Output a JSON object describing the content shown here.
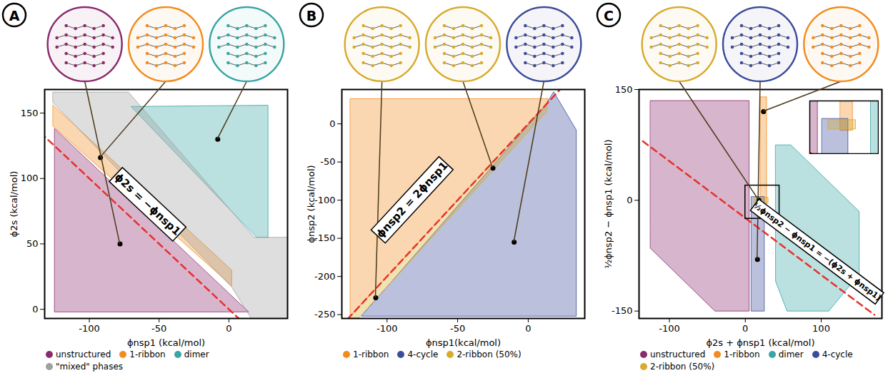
{
  "chart_data": [
    {
      "type": "area",
      "title": "A",
      "x_label": "ϕnsp1 (kcal/mol)",
      "y_label": "ϕ2s (kcal/mol)",
      "xlim": [
        -132,
        42
      ],
      "ylim": [
        -7,
        168
      ],
      "xticks": [
        -100,
        -50,
        0
      ],
      "yticks": [
        0,
        50,
        100,
        150
      ],
      "legend": "bottom",
      "series": [
        {
          "name": "unstructured",
          "color": "#8b2a6e",
          "x": [
            -125,
            -125,
            14
          ],
          "y": [
            138,
            -2,
            -2
          ]
        },
        {
          "name": "1-ribbon",
          "color": "#f28c1e",
          "x": [
            -126,
            2,
            2,
            -126
          ],
          "y": [
            156,
            30,
            18,
            140
          ]
        },
        {
          "name": "dimer",
          "color": "#3aa5a5",
          "x": [
            -70,
            28,
            28,
            20
          ],
          "y": [
            155,
            156,
            55,
            55
          ]
        },
        {
          "name": "\"mixed\" phases",
          "color": "#a0a0a0",
          "x": [
            -126,
            -72,
            18,
            42,
            42,
            16,
            2,
            -126
          ],
          "y": [
            166,
            166,
            55,
            55,
            -7,
            -7,
            17,
            158
          ]
        }
      ],
      "lines": [
        {
          "color": "#e8302a",
          "line_style": "dashed",
          "x": [
            -135,
            8
          ],
          "y": [
            135,
            -8
          ]
        }
      ],
      "annotations": [
        {
          "text": "ϕ2s = −ϕnsp1",
          "x": -58,
          "y": 80
        }
      ],
      "callouts": [
        {
          "series": "unstructured",
          "x": -78,
          "y": 50
        },
        {
          "series": "1-ribbon",
          "x": -92,
          "y": 116
        },
        {
          "series": "dimer",
          "x": -8,
          "y": 130
        }
      ]
    },
    {
      "type": "area",
      "title": "B",
      "x_label": "ϕnsp1(kcal/mol)",
      "y_label": "ϕnsp2 (kcal/mol)",
      "xlim": [
        -132,
        40
      ],
      "ylim": [
        -255,
        45
      ],
      "xticks": [
        -100,
        -50,
        0
      ],
      "yticks": [
        -250,
        -200,
        -150,
        -100,
        -50,
        0
      ],
      "legend": "bottom",
      "series": [
        {
          "name": "1-ribbon",
          "color": "#f28c1e",
          "x": [
            -126,
            14,
            14,
            -126
          ],
          "y": [
            33,
            33,
            28,
            -252
          ]
        },
        {
          "name": "4-cycle",
          "color": "#3d4c9a",
          "x": [
            -118,
            34,
            34,
            18,
            12
          ],
          "y": [
            -252,
            -252,
            -8,
            42,
            24
          ]
        },
        {
          "name": "2-ribbon (50%)",
          "color": "#d8ab2c",
          "x": [
            -127,
            13,
            13,
            -120
          ],
          "y": [
            -254,
            26,
            16,
            -254
          ]
        }
      ],
      "lines": [
        {
          "color": "#e8302a",
          "line_style": "dashed",
          "x": [
            -128,
            22
          ],
          "y": [
            -256,
            44
          ]
        }
      ],
      "annotations": [
        {
          "text": "ϕnsp2 = 2ϕnsp1",
          "x": -82,
          "y": -100
        }
      ],
      "callouts": [
        {
          "series": "2-ribbon (50%)",
          "x": -108,
          "y": -228
        },
        {
          "series": "2-ribbon (50%)",
          "x": -25,
          "y": -58
        },
        {
          "series": "4-cycle",
          "x": -10,
          "y": -155
        }
      ]
    },
    {
      "type": "area",
      "title": "C",
      "x_label": "ϕ2s + ϕnsp1 (kcal/mol)",
      "y_label": "½ϕnsp2 − ϕnsp1 (kcal/mol)",
      "xlim": [
        -140,
        180
      ],
      "ylim": [
        -160,
        150
      ],
      "xticks": [
        -100,
        0,
        100
      ],
      "yticks": [
        -150,
        0,
        150
      ],
      "legend": "bottom",
      "series": [
        {
          "name": "unstructured",
          "color": "#8b2a6e",
          "x": [
            -125,
            5,
            5,
            -40,
            -125
          ],
          "y": [
            135,
            135,
            -150,
            -150,
            -65
          ]
        },
        {
          "name": "1-ribbon",
          "color": "#f28c1e",
          "x": [
            20,
            28,
            28,
            20
          ],
          "y": [
            140,
            140,
            -5,
            -5
          ]
        },
        {
          "name": "dimer",
          "color": "#3aa5a5",
          "x": [
            40,
            60,
            150,
            150,
            110,
            55,
            40
          ],
          "y": [
            75,
            75,
            -15,
            -100,
            -150,
            -150,
            -110
          ]
        },
        {
          "name": "4-cycle",
          "color": "#3d4c9a",
          "x": [
            8,
            25,
            25,
            8
          ],
          "y": [
            5,
            5,
            -150,
            -150
          ]
        },
        {
          "name": "2-ribbon (50%)",
          "color": "#d8ab2c",
          "x": [
            12,
            30,
            30,
            12
          ],
          "y": [
            -4,
            -4,
            4,
            4
          ]
        }
      ],
      "lines": [
        {
          "color": "#e8302a",
          "line_style": "dashed",
          "x": [
            -135,
            170
          ],
          "y": [
            80,
            -155
          ]
        }
      ],
      "annotations": [
        {
          "text": "½ϕnsp2 − ϕnsp1 = −(ϕ2s + ϕnsp1)",
          "x": 95,
          "y": -70
        }
      ],
      "zoom_box": {
        "x": [
          0,
          45
        ],
        "y": [
          -25,
          20
        ]
      },
      "callouts": [
        {
          "series": "2-ribbon (50%)",
          "x": 18,
          "y": 0
        },
        {
          "series": "4-cycle",
          "x": 16,
          "y": -80
        },
        {
          "series": "1-ribbon",
          "x": 24,
          "y": 120
        }
      ]
    }
  ]
}
